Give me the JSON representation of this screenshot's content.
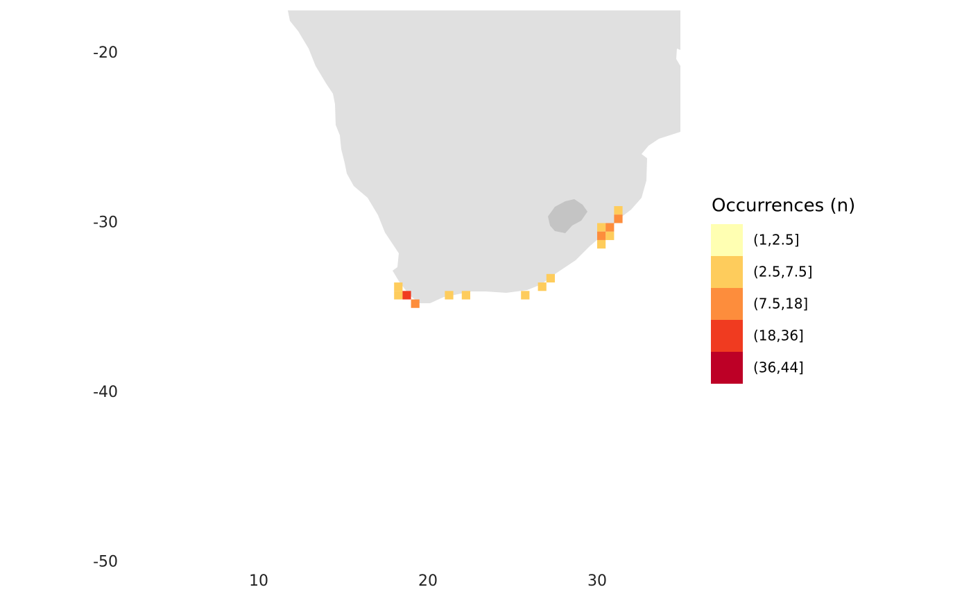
{
  "chart_data": {
    "type": "grid-map",
    "xlim": [
      1.3,
      34.9
    ],
    "ylim": [
      -51,
      -17.5
    ],
    "xticks": [
      10,
      20,
      30
    ],
    "yticks": [
      -20,
      -30,
      -40,
      -50
    ],
    "legend": {
      "title": "Occurrences (n)",
      "items": [
        {
          "label": "(1,2.5]",
          "color": "#ffffb2",
          "cells": []
        },
        {
          "label": "(2.5,7.5]",
          "color": "#fecc5c",
          "cells": [
            [
              18.25,
              -33.75
            ],
            [
              18.25,
              -34.25
            ],
            [
              21.25,
              -34.25
            ],
            [
              22.25,
              -34.25
            ],
            [
              25.75,
              -34.25
            ],
            [
              26.75,
              -33.75
            ],
            [
              27.25,
              -33.25
            ],
            [
              30.25,
              -30.25
            ],
            [
              30.75,
              -30.75
            ],
            [
              30.25,
              -31.25
            ],
            [
              31.25,
              -29.25
            ]
          ]
        },
        {
          "label": "(7.5,18]",
          "color": "#fd8d3c",
          "cells": [
            [
              19.25,
              -34.75
            ],
            [
              30.75,
              -30.25
            ],
            [
              30.25,
              -30.75
            ],
            [
              31.25,
              -29.75
            ]
          ]
        },
        {
          "label": "(18,36]",
          "color": "#f03b20",
          "cells": [
            [
              18.75,
              -34.25
            ]
          ]
        },
        {
          "label": "(36,44]",
          "color": "#bd0026",
          "cells": []
        }
      ]
    }
  }
}
